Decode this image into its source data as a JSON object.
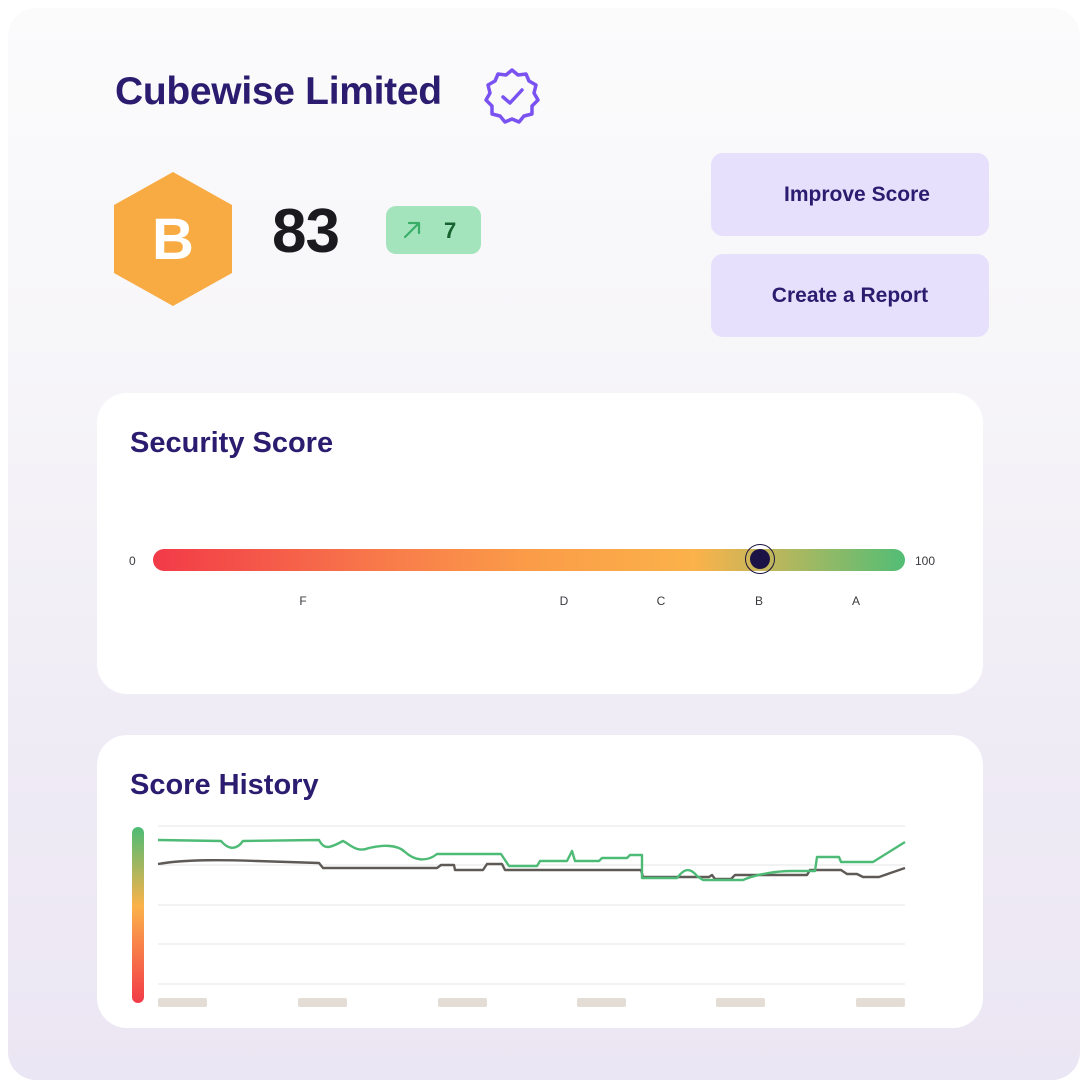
{
  "company": {
    "name": "Cubewise Limited",
    "verified_icon": "verified-badge-icon"
  },
  "grade": {
    "letter": "B",
    "color": "#f9ab43"
  },
  "score": {
    "value": "83",
    "change": "7",
    "change_direction": "up",
    "change_icon": "arrow-up-right-icon"
  },
  "actions": {
    "improve_label": "Improve Score",
    "report_label": "Create a Report"
  },
  "security": {
    "title": "Security Score",
    "min_label": "0",
    "max_label": "100",
    "value": 83,
    "grades": [
      "F",
      "D",
      "C",
      "B",
      "A"
    ]
  },
  "history": {
    "title": "Score History",
    "colors": {
      "company": "#4dbb75",
      "benchmark": "#5f5a56"
    }
  }
}
